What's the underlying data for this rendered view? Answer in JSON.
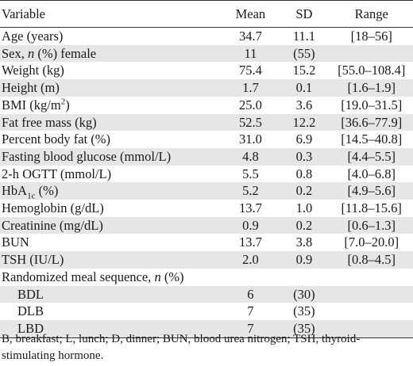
{
  "table": {
    "headers": {
      "variable": "Variable",
      "mean": "Mean",
      "sd": "SD",
      "range": "Range"
    },
    "rows": [
      {
        "variable": "Age (years)",
        "mean": "34.7",
        "sd": "11.1",
        "range": "[18–56]"
      },
      {
        "variable_pre": "Sex, ",
        "variable_it": "n",
        "variable_post": " (%) female",
        "mean": "11",
        "sd": "(55)",
        "range": ""
      },
      {
        "variable": "Weight (kg)",
        "mean": "75.4",
        "sd": "15.2",
        "range": "[55.0–108.4]"
      },
      {
        "variable": "Height (m)",
        "mean": "1.7",
        "sd": "0.1",
        "range": "[1.6–1.9]"
      },
      {
        "variable_pre": "BMI (kg/m",
        "variable_sup": "2",
        "variable_post": ")",
        "mean": "25.0",
        "sd": "3.6",
        "range": "[19.0–31.5]"
      },
      {
        "variable": "Fat free mass (kg)",
        "mean": "52.5",
        "sd": "12.2",
        "range": "[36.6–77.9]"
      },
      {
        "variable": "Percent body fat (%)",
        "mean": "31.0",
        "sd": "6.9",
        "range": "[14.5–40.8]"
      },
      {
        "variable": "Fasting blood glucose (mmol/L)",
        "mean": "4.8",
        "sd": "0.3",
        "range": "[4.4–5.5]"
      },
      {
        "variable": "2-h OGTT (mmol/L)",
        "mean": "5.5",
        "sd": "0.8",
        "range": "[4.0–6.8]"
      },
      {
        "variable_pre": "HbA",
        "variable_sub": "1c",
        "variable_post": " (%)",
        "mean": "5.2",
        "sd": "0.2",
        "range": "[4.9–5.6]"
      },
      {
        "variable": "Hemoglobin (g/dL)",
        "mean": "13.7",
        "sd": "1.0",
        "range": "[11.8–15.6]"
      },
      {
        "variable": "Creatinine (mg/dL)",
        "mean": "0.9",
        "sd": "0.2",
        "range": "[0.6–1.3]"
      },
      {
        "variable": "BUN",
        "mean": "13.7",
        "sd": "3.8",
        "range": "[7.0–20.0]"
      },
      {
        "variable": "TSH (IU/L)",
        "mean": "2.0",
        "sd": "0.9",
        "range": "[0.8–4.5]"
      },
      {
        "variable_pre": "Randomized meal sequence, ",
        "variable_it": "n",
        "variable_post": " (%)",
        "mean": "",
        "sd": "",
        "range": ""
      },
      {
        "variable": "BDL",
        "mean": "6",
        "sd": "(30)",
        "range": ""
      },
      {
        "variable": "DLB",
        "mean": "7",
        "sd": "(35)",
        "range": ""
      },
      {
        "variable": "LBD",
        "mean": "7",
        "sd": "(35)",
        "range": ""
      }
    ]
  },
  "footnote": "B, breakfast; L, lunch; D, dinner; BUN, blood urea nitrogen; TSH, thyroid-stimulating hormone."
}
